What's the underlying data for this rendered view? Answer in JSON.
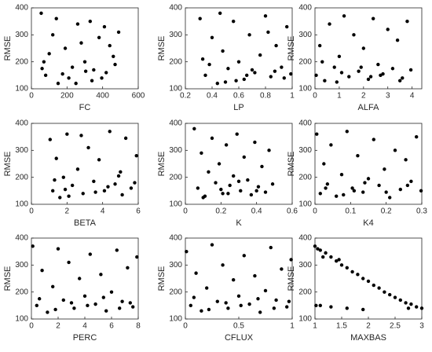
{
  "chart_data": [
    {
      "type": "scatter",
      "x_label": "FC",
      "y_label": "RMSE",
      "color": "#000000",
      "xlim": [
        0,
        600
      ],
      "ylim": [
        100,
        400
      ],
      "xticks": [
        0,
        200,
        400,
        600
      ],
      "yticks": [
        100,
        200,
        300,
        400
      ],
      "x": [
        55,
        80,
        120,
        150,
        190,
        230,
        260,
        300,
        340,
        380,
        420,
        460,
        490,
        70,
        140,
        210,
        280,
        350,
        410,
        470,
        100,
        250,
        330,
        440,
        60,
        175,
        395,
        305
      ],
      "y": [
        380,
        150,
        300,
        120,
        250,
        180,
        340,
        200,
        130,
        290,
        160,
        220,
        310,
        200,
        360,
        140,
        270,
        170,
        330,
        190,
        230,
        120,
        350,
        260,
        175,
        155,
        140,
        165
      ]
    },
    {
      "type": "scatter",
      "x_label": "LP",
      "y_label": "RMSE",
      "color": "#000000",
      "xlim": [
        0.2,
        1
      ],
      "ylim": [
        100,
        400
      ],
      "xticks": [
        0.2,
        0.4,
        0.6,
        0.8,
        1
      ],
      "yticks": [
        100,
        200,
        300,
        400
      ],
      "x": [
        0.31,
        0.35,
        0.4,
        0.44,
        0.48,
        0.52,
        0.56,
        0.6,
        0.64,
        0.68,
        0.72,
        0.76,
        0.8,
        0.84,
        0.88,
        0.92,
        0.96,
        0.99,
        0.33,
        0.46,
        0.58,
        0.7,
        0.82,
        0.94,
        0.38,
        0.66,
        0.87,
        0.5
      ],
      "y": [
        360,
        150,
        290,
        120,
        240,
        175,
        350,
        200,
        135,
        300,
        160,
        225,
        370,
        145,
        260,
        180,
        330,
        155,
        210,
        380,
        130,
        170,
        310,
        140,
        190,
        150,
        165,
        125
      ]
    },
    {
      "type": "scatter",
      "x_label": "ALFA",
      "y_label": "RMSE",
      "color": "#000000",
      "xlim": [
        0,
        4.4
      ],
      "ylim": [
        100,
        400
      ],
      "xticks": [
        0,
        1,
        2,
        3,
        4
      ],
      "yticks": [
        100,
        200,
        300,
        400
      ],
      "x": [
        0.05,
        0.2,
        0.4,
        0.6,
        0.8,
        1.0,
        1.2,
        1.4,
        1.6,
        1.8,
        2.0,
        2.2,
        2.4,
        2.6,
        2.8,
        3.0,
        3.2,
        3.4,
        3.6,
        3.8,
        3.95,
        0.3,
        1.1,
        1.9,
        2.7,
        3.5,
        0.9,
        2.3
      ],
      "y": [
        150,
        260,
        130,
        340,
        180,
        220,
        370,
        145,
        300,
        165,
        250,
        135,
        360,
        190,
        155,
        320,
        175,
        280,
        140,
        350,
        170,
        200,
        160,
        180,
        150,
        130,
        125,
        145
      ]
    },
    {
      "type": "scatter",
      "x_label": "BETA",
      "y_label": "RMSE",
      "color": "#000000",
      "xlim": [
        0,
        6
      ],
      "ylim": [
        100,
        400
      ],
      "xticks": [
        0,
        2,
        4,
        6
      ],
      "yticks": [
        100,
        200,
        300,
        400
      ],
      "x": [
        1.05,
        1.2,
        1.4,
        1.6,
        1.8,
        2.0,
        2.3,
        2.6,
        2.9,
        3.2,
        3.5,
        3.8,
        4.1,
        4.4,
        4.7,
        5.0,
        5.3,
        5.6,
        5.9,
        1.3,
        2.1,
        2.8,
        3.6,
        4.3,
        5.1,
        5.8,
        1.9,
        4.9
      ],
      "y": [
        340,
        150,
        270,
        125,
        200,
        360,
        170,
        230,
        140,
        310,
        185,
        265,
        150,
        370,
        175,
        220,
        345,
        160,
        280,
        190,
        130,
        355,
        145,
        165,
        135,
        180,
        155,
        205
      ]
    },
    {
      "type": "scatter",
      "x_label": "K",
      "y_label": "RMSE",
      "color": "#000000",
      "xlim": [
        0,
        0.6
      ],
      "ylim": [
        100,
        400
      ],
      "xticks": [
        0,
        0.2,
        0.4,
        0.6
      ],
      "yticks": [
        100,
        200,
        300,
        400
      ],
      "x": [
        0.05,
        0.07,
        0.09,
        0.11,
        0.13,
        0.15,
        0.17,
        0.19,
        0.21,
        0.23,
        0.25,
        0.27,
        0.29,
        0.31,
        0.33,
        0.35,
        0.37,
        0.39,
        0.41,
        0.43,
        0.45,
        0.47,
        0.49,
        0.1,
        0.2,
        0.3,
        0.4,
        0.24
      ],
      "y": [
        380,
        160,
        290,
        130,
        220,
        345,
        180,
        250,
        140,
        320,
        170,
        205,
        360,
        150,
        275,
        190,
        135,
        330,
        165,
        240,
        145,
        300,
        175,
        125,
        155,
        185,
        150,
        140
      ]
    },
    {
      "type": "scatter",
      "x_label": "K4",
      "y_label": "RMSE",
      "color": "#000000",
      "xlim": [
        0,
        0.3
      ],
      "ylim": [
        100,
        400
      ],
      "xticks": [
        0,
        0.1,
        0.2,
        0.3
      ],
      "yticks": [
        100,
        200,
        300,
        400
      ],
      "x": [
        0.005,
        0.015,
        0.025,
        0.035,
        0.045,
        0.06,
        0.075,
        0.09,
        0.105,
        0.12,
        0.135,
        0.15,
        0.165,
        0.18,
        0.195,
        0.21,
        0.225,
        0.24,
        0.255,
        0.27,
        0.285,
        0.298,
        0.03,
        0.08,
        0.14,
        0.2,
        0.26,
        0.11
      ],
      "y": [
        360,
        140,
        250,
        175,
        320,
        130,
        210,
        370,
        160,
        280,
        145,
        195,
        340,
        170,
        230,
        125,
        300,
        155,
        265,
        185,
        350,
        150,
        160,
        135,
        180,
        145,
        170,
        150
      ]
    },
    {
      "type": "scatter",
      "x_label": "PERC",
      "y_label": "RMSE",
      "color": "#000000",
      "xlim": [
        0,
        8
      ],
      "ylim": [
        100,
        400
      ],
      "xticks": [
        0,
        2,
        4,
        6,
        8
      ],
      "yticks": [
        100,
        200,
        300,
        400
      ],
      "x": [
        0.1,
        0.4,
        0.8,
        1.2,
        1.6,
        2.0,
        2.4,
        2.8,
        3.2,
        3.6,
        4.0,
        4.4,
        4.8,
        5.2,
        5.6,
        6.0,
        6.4,
        6.8,
        7.2,
        7.6,
        7.9,
        0.6,
        1.8,
        3.0,
        4.2,
        5.4,
        6.6,
        7.4
      ],
      "y": [
        370,
        150,
        280,
        125,
        220,
        360,
        170,
        310,
        140,
        250,
        185,
        340,
        155,
        265,
        130,
        200,
        355,
        165,
        290,
        145,
        330,
        175,
        135,
        160,
        150,
        180,
        140,
        160
      ]
    },
    {
      "type": "scatter",
      "x_label": "CFLUX",
      "y_label": "RMSE",
      "color": "#000000",
      "xlim": [
        0,
        1
      ],
      "ylim": [
        100,
        400
      ],
      "xticks": [
        0,
        0.5,
        1
      ],
      "yticks": [
        100,
        200,
        300,
        400
      ],
      "x": [
        0.01,
        0.05,
        0.1,
        0.15,
        0.2,
        0.25,
        0.3,
        0.35,
        0.4,
        0.45,
        0.5,
        0.55,
        0.6,
        0.65,
        0.7,
        0.75,
        0.8,
        0.85,
        0.9,
        0.95,
        0.99,
        0.08,
        0.22,
        0.38,
        0.52,
        0.68,
        0.83,
        0.97
      ],
      "y": [
        350,
        150,
        270,
        130,
        215,
        375,
        165,
        300,
        140,
        245,
        185,
        335,
        155,
        260,
        125,
        205,
        365,
        170,
        285,
        145,
        320,
        180,
        135,
        160,
        150,
        175,
        140,
        165
      ]
    },
    {
      "type": "scatter",
      "x_label": "MAXBAS",
      "y_label": "RMSE",
      "color": "#000000",
      "xlim": [
        1,
        3
      ],
      "ylim": [
        100,
        400
      ],
      "xticks": [
        1,
        1.5,
        2,
        2.5,
        3
      ],
      "yticks": [
        100,
        200,
        300,
        400
      ],
      "x": [
        1,
        1.05,
        1.1,
        1.2,
        1.3,
        1.4,
        1.5,
        1.6,
        1.7,
        1.8,
        1.9,
        2,
        2.1,
        2.2,
        2.3,
        2.4,
        2.5,
        2.6,
        2.7,
        2.8,
        2.9,
        3,
        1.1,
        1.3,
        1.6,
        1.9,
        1.15,
        1.45,
        1.02,
        2.75
      ],
      "y": [
        370,
        360,
        355,
        345,
        330,
        315,
        300,
        290,
        275,
        265,
        250,
        240,
        225,
        215,
        200,
        190,
        180,
        170,
        160,
        155,
        145,
        140,
        150,
        145,
        140,
        135,
        330,
        320,
        150,
        140
      ]
    }
  ]
}
